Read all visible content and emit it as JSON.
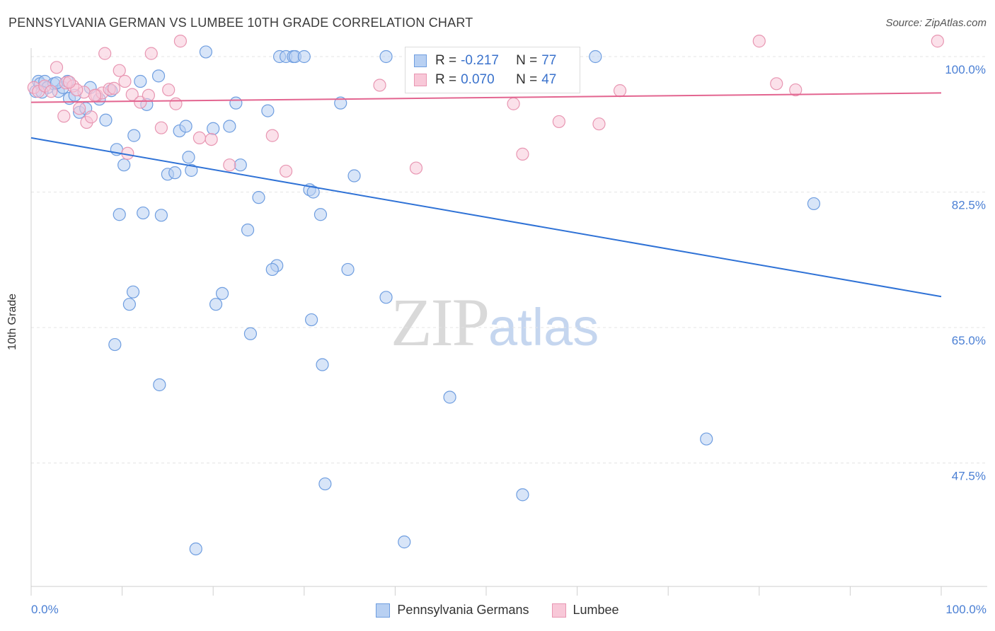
{
  "header": {
    "title": "PENNSYLVANIA GERMAN VS LUMBEE 10TH GRADE CORRELATION CHART",
    "source": "Source: ZipAtlas.com"
  },
  "watermark": {
    "zip": "ZIP",
    "atlas": "atlas"
  },
  "legend_top": {
    "blue": {
      "r_label": "R =",
      "r_value": "-0.217",
      "n_label": "N =",
      "n_value": "77"
    },
    "pink": {
      "r_label": "R =",
      "r_value": "0.070",
      "n_label": "N =",
      "n_value": "47"
    }
  },
  "legend_bottom": {
    "blue_label": "Pennsylvania Germans",
    "pink_label": "Lumbee"
  },
  "colors": {
    "blue_fill": "#b8d0f2",
    "blue_stroke": "#6f9ee0",
    "blue_line": "#2f72d6",
    "pink_fill": "#f8c8d8",
    "pink_stroke": "#e896b2",
    "pink_line": "#e36590",
    "tick_label": "#4a7fd4",
    "grid": "#e4e4e4"
  },
  "chart_data": {
    "type": "scatter",
    "title": "PENNSYLVANIA GERMAN VS LUMBEE 10TH GRADE CORRELATION CHART",
    "xlabel": "",
    "ylabel": "10th Grade",
    "xlim": [
      0,
      100
    ],
    "ylim": [
      35,
      101.5
    ],
    "x_tick_labels": [
      "0.0%",
      "100.0%"
    ],
    "y_ticks": [
      47.5,
      65.0,
      82.5,
      100.0
    ],
    "y_tick_labels": [
      "47.5%",
      "65.0%",
      "82.5%",
      "100.0%"
    ],
    "grid": true,
    "legend_position": "top-center",
    "series": [
      {
        "name": "Pennsylvania Germans",
        "color": "blue",
        "trend": {
          "x": [
            0,
            100
          ],
          "y": [
            89.5,
            69.0
          ]
        },
        "points": [
          [
            0.5,
            95.5
          ],
          [
            0.8,
            96.8
          ],
          [
            1.0,
            96.5
          ],
          [
            1.5,
            96.8
          ],
          [
            1.8,
            96.0
          ],
          [
            2.5,
            96.5
          ],
          [
            3.0,
            95.5
          ],
          [
            3.5,
            96.0
          ],
          [
            4.2,
            94.6
          ],
          [
            4.8,
            95.0
          ],
          [
            5.3,
            92.8
          ],
          [
            6.0,
            93.3
          ],
          [
            6.5,
            96.0
          ],
          [
            7.5,
            94.5
          ],
          [
            8.2,
            91.8
          ],
          [
            8.8,
            95.6
          ],
          [
            9.4,
            88.0
          ],
          [
            10.2,
            86.0
          ],
          [
            11.3,
            89.8
          ],
          [
            12.0,
            96.8
          ],
          [
            12.7,
            93.8
          ],
          [
            14.0,
            97.5
          ],
          [
            15.0,
            84.8
          ],
          [
            9.7,
            79.6
          ],
          [
            12.3,
            79.8
          ],
          [
            14.3,
            79.5
          ],
          [
            16.3,
            90.4
          ],
          [
            17.0,
            91.0
          ],
          [
            17.3,
            87.0
          ],
          [
            17.6,
            85.3
          ],
          [
            15.8,
            85.0
          ],
          [
            19.2,
            100.6
          ],
          [
            20.0,
            90.7
          ],
          [
            21.8,
            91.0
          ],
          [
            22.5,
            94.0
          ],
          [
            23.0,
            86.0
          ],
          [
            23.8,
            77.6
          ],
          [
            25.0,
            81.8
          ],
          [
            26.0,
            93.0
          ],
          [
            27.0,
            73.0
          ],
          [
            26.5,
            72.5
          ],
          [
            27.3,
            100.0
          ],
          [
            28.0,
            100.0
          ],
          [
            28.8,
            100.0
          ],
          [
            29.0,
            100.0
          ],
          [
            30.0,
            100.0
          ],
          [
            30.6,
            82.8
          ],
          [
            31.0,
            82.5
          ],
          [
            31.8,
            79.6
          ],
          [
            34.0,
            94.0
          ],
          [
            34.8,
            72.5
          ],
          [
            35.5,
            84.6
          ],
          [
            39.0,
            100.0
          ],
          [
            11.2,
            69.6
          ],
          [
            10.8,
            68.0
          ],
          [
            20.3,
            68.0
          ],
          [
            21.0,
            69.4
          ],
          [
            24.1,
            64.2
          ],
          [
            30.8,
            66.0
          ],
          [
            39.0,
            68.9
          ],
          [
            9.2,
            62.8
          ],
          [
            32.0,
            60.2
          ],
          [
            14.1,
            57.6
          ],
          [
            46.0,
            56.0
          ],
          [
            62.0,
            100.0
          ],
          [
            43.0,
            100.0
          ],
          [
            47.0,
            100.0
          ],
          [
            50.0,
            100.0
          ],
          [
            86.0,
            81.0
          ],
          [
            74.2,
            50.6
          ],
          [
            32.3,
            44.8
          ],
          [
            54.0,
            43.4
          ],
          [
            18.1,
            36.4
          ],
          [
            41.0,
            37.3
          ],
          [
            2.8,
            96.6
          ],
          [
            4.0,
            96.8
          ],
          [
            1.2,
            95.4
          ]
        ]
      },
      {
        "name": "Lumbee",
        "color": "pink",
        "trend": {
          "x": [
            0,
            100
          ],
          "y": [
            94.1,
            95.3
          ]
        },
        "points": [
          [
            0.3,
            96.0
          ],
          [
            0.8,
            95.5
          ],
          [
            1.5,
            96.2
          ],
          [
            2.2,
            95.5
          ],
          [
            2.8,
            98.6
          ],
          [
            3.6,
            92.3
          ],
          [
            3.8,
            96.6
          ],
          [
            4.6,
            96.2
          ],
          [
            5.3,
            93.3
          ],
          [
            5.8,
            95.4
          ],
          [
            6.1,
            91.5
          ],
          [
            6.6,
            92.2
          ],
          [
            7.2,
            95.0
          ],
          [
            7.8,
            95.3
          ],
          [
            8.1,
            100.4
          ],
          [
            8.6,
            95.8
          ],
          [
            9.1,
            95.9
          ],
          [
            9.7,
            98.2
          ],
          [
            10.3,
            96.8
          ],
          [
            10.6,
            87.5
          ],
          [
            11.1,
            95.1
          ],
          [
            12.0,
            94.1
          ],
          [
            12.9,
            95.0
          ],
          [
            13.2,
            100.4
          ],
          [
            14.3,
            90.8
          ],
          [
            15.1,
            95.7
          ],
          [
            15.9,
            93.9
          ],
          [
            16.4,
            102.0
          ],
          [
            18.5,
            89.5
          ],
          [
            19.8,
            89.3
          ],
          [
            21.8,
            86.0
          ],
          [
            26.5,
            89.8
          ],
          [
            28.0,
            85.2
          ],
          [
            38.3,
            96.3
          ],
          [
            42.3,
            85.6
          ],
          [
            53.0,
            93.9
          ],
          [
            54.0,
            87.4
          ],
          [
            58.0,
            91.6
          ],
          [
            62.4,
            91.3
          ],
          [
            64.7,
            95.6
          ],
          [
            80.0,
            102.0
          ],
          [
            81.9,
            96.5
          ],
          [
            84.0,
            95.7
          ],
          [
            99.6,
            102.0
          ],
          [
            7.0,
            95.0
          ],
          [
            5.0,
            95.7
          ],
          [
            4.2,
            96.7
          ]
        ]
      }
    ]
  }
}
